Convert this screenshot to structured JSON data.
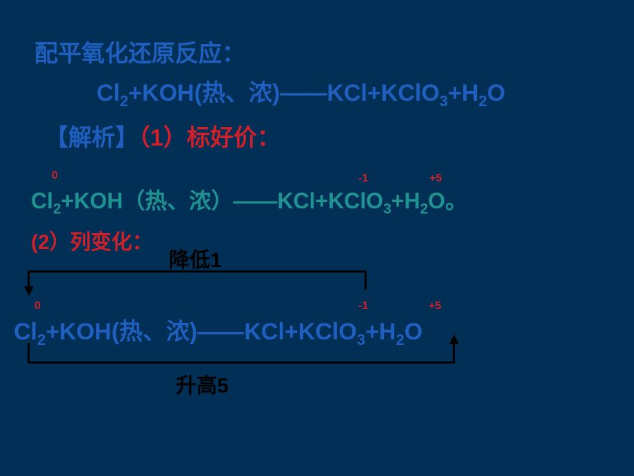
{
  "colors": {
    "background": "#012f55",
    "blue": "#1f5fbf",
    "red": "#d0202a",
    "teal": "#1f9391",
    "black": "#000000"
  },
  "title": "配平氧化还原反应：",
  "equation_main": {
    "prefix": "Cl",
    "sub1": "2",
    "mid1": "+KOH(热、浓)——KCl+KClO",
    "sub2": "3",
    "mid2": "+H",
    "sub3": "2",
    "end": "O"
  },
  "analysis_label": "【解析】",
  "step1_label": "（1）标好价：",
  "oxidation": {
    "cl2": "0",
    "kcl": "-1",
    "kclo3": "+5"
  },
  "eq_annotated": {
    "prefix": "Cl",
    "sub1": "2",
    "mid1": "+KOH（热、浓）——KCl+KClO",
    "sub2": "3",
    "mid2": "+H",
    "sub3": "2",
    "end": "O。"
  },
  "step2_label": "(2）列变化：",
  "decrease_label": "降低1",
  "increase_label": "升高5",
  "eq_change": {
    "prefix": "Cl",
    "sub1": "2",
    "mid1": "+KOH(热、浓)——KCl+KClO",
    "sub2": "3",
    "mid2": "+H",
    "sub3": "2",
    "end": "O"
  }
}
